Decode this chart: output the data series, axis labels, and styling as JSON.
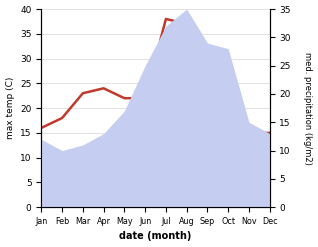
{
  "months": [
    "Jan",
    "Feb",
    "Mar",
    "Apr",
    "May",
    "Jun",
    "Jul",
    "Aug",
    "Sep",
    "Oct",
    "Nov",
    "Dec"
  ],
  "max_temp": [
    16,
    18,
    23,
    24,
    22,
    22,
    38,
    37,
    30,
    28,
    15,
    15
  ],
  "precipitation": [
    12,
    10,
    11,
    13,
    17,
    25,
    32,
    35,
    29,
    28,
    15,
    13
  ],
  "temp_color": "#c0392b",
  "precip_fill_color": "#c5cdf0",
  "temp_ylim": [
    0,
    40
  ],
  "precip_ylim": [
    0,
    35
  ],
  "xlabel": "date (month)",
  "ylabel_left": "max temp (C)",
  "ylabel_right": "med. precipitation (kg/m2)",
  "background_color": "#ffffff",
  "temp_linewidth": 1.8
}
